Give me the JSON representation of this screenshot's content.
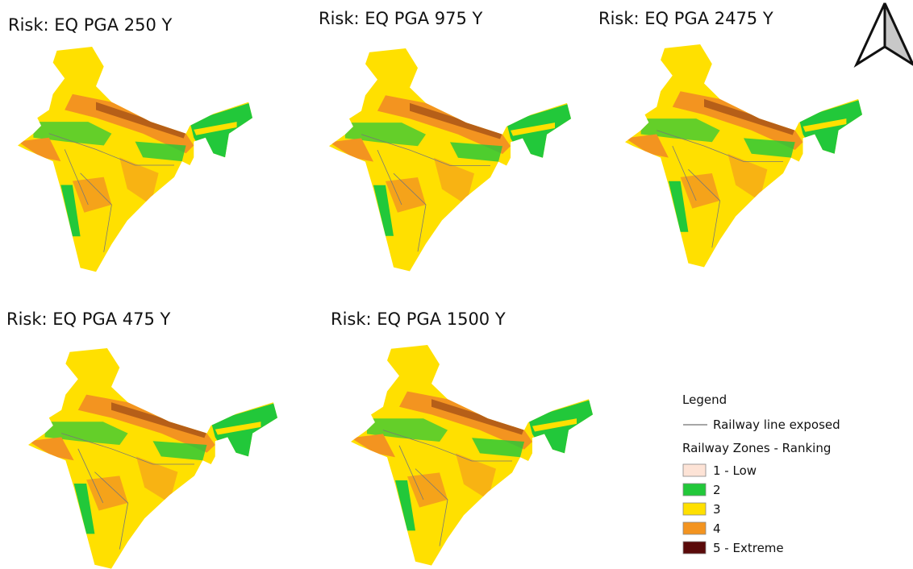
{
  "panels": [
    {
      "title": "Risk: EQ PGA 250 Y"
    },
    {
      "title": "Risk: EQ PGA 975 Y"
    },
    {
      "title": "Risk: EQ PGA 2475 Y"
    },
    {
      "title": "Risk: EQ PGA 475 Y"
    },
    {
      "title": "Risk: EQ PGA 1500 Y"
    }
  ],
  "legend": {
    "title": "Legend",
    "line_label": "Railway line exposed",
    "zones_title": "Railway Zones - Ranking",
    "items": [
      {
        "label": "1 - Low",
        "color": "#fde3d6"
      },
      {
        "label": "2",
        "color": "#22c83a"
      },
      {
        "label": "3",
        "color": "#ffe000"
      },
      {
        "label": "4",
        "color": "#f39420"
      },
      {
        "label": "5 - Extreme",
        "color": "#5a0a0a"
      }
    ]
  }
}
